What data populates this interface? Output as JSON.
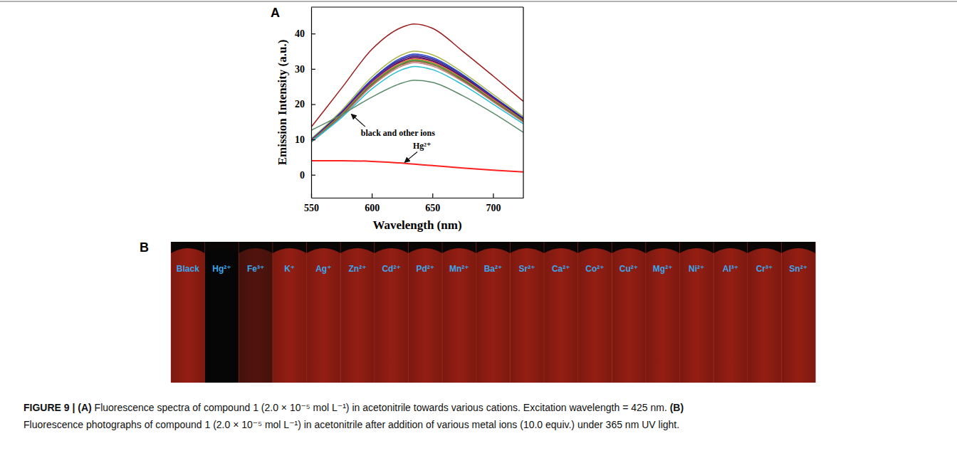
{
  "chart_data": {
    "type": "line",
    "xlabel": "Wavelength (nm)",
    "ylabel": "Emission Intensity (a.u.)",
    "x": [
      550,
      575,
      600,
      625,
      635,
      650,
      675,
      700,
      725
    ],
    "xlim": [
      550,
      725
    ],
    "xticks": [
      550,
      600,
      650,
      700
    ],
    "ylim": [
      -6.5,
      47.5
    ],
    "yticks": [
      0,
      10,
      20,
      30,
      40
    ],
    "grid": false,
    "series": [
      {
        "color": "#9b1b1b",
        "values": [
          13.5,
          24.5,
          35.5,
          41.8,
          42.7,
          41.5,
          35.0,
          28.0,
          20.8
        ]
      },
      {
        "color": "#a9b84a",
        "values": [
          10.2,
          18.2,
          27.7,
          34.0,
          35.0,
          34.0,
          29.0,
          22.8,
          16.5
        ]
      },
      {
        "color": "#2a3fd6",
        "values": [
          9.9,
          17.8,
          27.0,
          33.2,
          34.2,
          33.2,
          28.4,
          22.2,
          16.1
        ]
      },
      {
        "color": "#1b2a78",
        "values": [
          9.8,
          17.6,
          26.7,
          32.8,
          33.8,
          32.8,
          28.1,
          22.0,
          15.9
        ]
      },
      {
        "color": "#7a2fb0",
        "values": [
          9.7,
          17.4,
          26.5,
          32.5,
          33.5,
          32.5,
          27.8,
          21.8,
          15.7
        ]
      },
      {
        "color": "#111111",
        "values": [
          9.6,
          17.3,
          26.2,
          32.2,
          33.2,
          32.2,
          27.6,
          21.6,
          15.6
        ]
      },
      {
        "color": "#d12fb8",
        "values": [
          9.6,
          17.2,
          26.1,
          32.0,
          33.0,
          32.0,
          27.4,
          21.5,
          15.5
        ]
      },
      {
        "color": "#e08a1e",
        "values": [
          9.5,
          17.1,
          25.9,
          31.8,
          32.8,
          31.8,
          27.2,
          21.3,
          15.4
        ]
      },
      {
        "color": "#2e9a3a",
        "values": [
          9.4,
          16.9,
          25.7,
          31.5,
          32.5,
          31.5,
          27.0,
          21.1,
          15.3
        ]
      },
      {
        "color": "#8a5a2b",
        "values": [
          9.3,
          16.7,
          25.4,
          31.2,
          32.2,
          31.2,
          26.7,
          20.9,
          15.1
        ]
      },
      {
        "color": "#c07878",
        "values": [
          9.2,
          16.5,
          25.1,
          30.8,
          31.8,
          30.8,
          26.4,
          20.7,
          14.9
        ]
      },
      {
        "color": "#22bcd4",
        "values": [
          9.4,
          16.2,
          24.3,
          29.8,
          30.7,
          29.8,
          25.5,
          20.0,
          14.4
        ]
      },
      {
        "color": "#5a8a6a",
        "values": [
          12.6,
          17.0,
          22.0,
          26.0,
          26.8,
          26.2,
          22.4,
          17.5,
          12.0
        ]
      },
      {
        "color": "#ff2020",
        "values": [
          4.0,
          4.0,
          3.8,
          3.3,
          3.0,
          2.6,
          1.9,
          1.3,
          0.8
        ]
      }
    ],
    "annotations": [
      {
        "text": "black and other ions",
        "x": 591,
        "y": 11,
        "arrow_x": 583,
        "arrow_y": 17.2
      },
      {
        "text": "Hg²⁺",
        "x": 634,
        "y": 7.5,
        "arrow_x": 627,
        "arrow_y": 3.5
      }
    ]
  },
  "panel_letters": [
    "A",
    "B"
  ],
  "photo": {
    "tubes": [
      {
        "label": "Black",
        "color": "#8c1c12"
      },
      {
        "label": "Hg²⁺",
        "color": "#060606"
      },
      {
        "label": "Fe³⁺",
        "color": "#4e130d"
      },
      {
        "label": "K⁺",
        "color": "#8c1c12"
      },
      {
        "label": "Ag⁺",
        "color": "#8c1c12"
      },
      {
        "label": "Zn²⁺",
        "color": "#8c1c12"
      },
      {
        "label": "Cd²⁺",
        "color": "#8c1c12"
      },
      {
        "label": "Pd²⁺",
        "color": "#8c1c12"
      },
      {
        "label": "Mn²⁺",
        "color": "#8c1c12"
      },
      {
        "label": "Ba²⁺",
        "color": "#8c1c12"
      },
      {
        "label": "Sr²⁺",
        "color": "#8c1c12"
      },
      {
        "label": "Ca²⁺",
        "color": "#8c1c12"
      },
      {
        "label": "Co²⁺",
        "color": "#8c1c12"
      },
      {
        "label": "Cu²⁺",
        "color": "#8c1c12"
      },
      {
        "label": "Mg²⁺",
        "color": "#8c1c12"
      },
      {
        "label": "Ni²⁺",
        "color": "#8c1c12"
      },
      {
        "label": "Al³⁺",
        "color": "#8c1c12"
      },
      {
        "label": "Cr³⁺",
        "color": "#8c1c12"
      },
      {
        "label": "Sn²⁺",
        "color": "#8c1c12"
      }
    ]
  },
  "caption": {
    "lines": [
      [
        {
          "text": "FIGURE 9 | (A)",
          "bold": true
        },
        {
          "text": " Fluorescence spectra of compound 1 (2.0 × 10⁻⁵ mol L⁻¹) in acetonitrile towards various cations. Excitation wavelength = 425 nm. ",
          "bold": false
        },
        {
          "text": "(B)",
          "bold": true
        }
      ],
      [
        {
          "text": "Fluorescence photographs of compound 1 (2.0 × 10⁻⁵ mol L⁻¹) in acetonitrile after addition of various metal ions (10.0 equiv.) under 365 nm UV light.",
          "bold": false
        }
      ]
    ]
  }
}
